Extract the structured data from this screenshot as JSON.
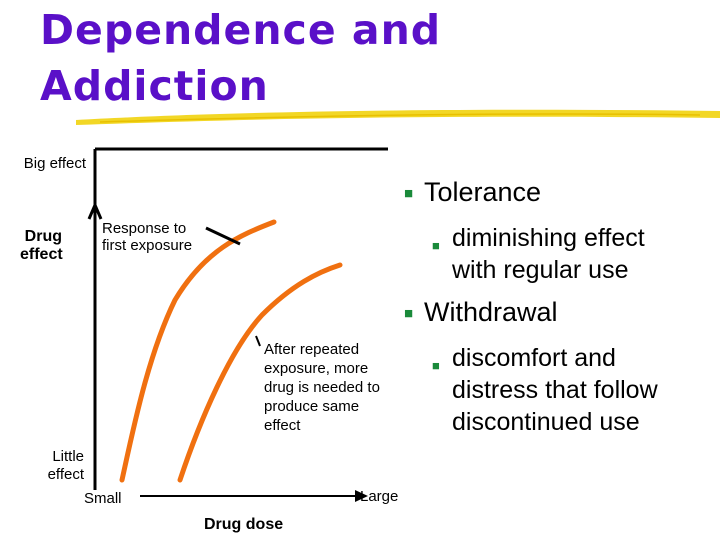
{
  "slide": {
    "title_line1": "Dependence and",
    "title_line2": "Addiction"
  },
  "graph": {
    "y_top": "Big effect",
    "y_label": "Drug effect",
    "y_bottom": "Little effect",
    "x_left": "Small",
    "x_right": "Large",
    "x_label": "Drug dose",
    "annotation_first": "Response to first exposure",
    "annotation_repeated": "After repeated exposure, more drug is needed to produce same effect"
  },
  "bullets": [
    {
      "text": "Tolerance",
      "sub": [
        "diminishing effect with regular use"
      ]
    },
    {
      "text": "Withdrawal",
      "sub": [
        "discomfort and distress that follow discontinued use"
      ]
    }
  ],
  "colors": {
    "title": "#5a10c8",
    "curve": "#f07010",
    "bullet": "#1a8a3a",
    "underline": "#f0d000"
  }
}
